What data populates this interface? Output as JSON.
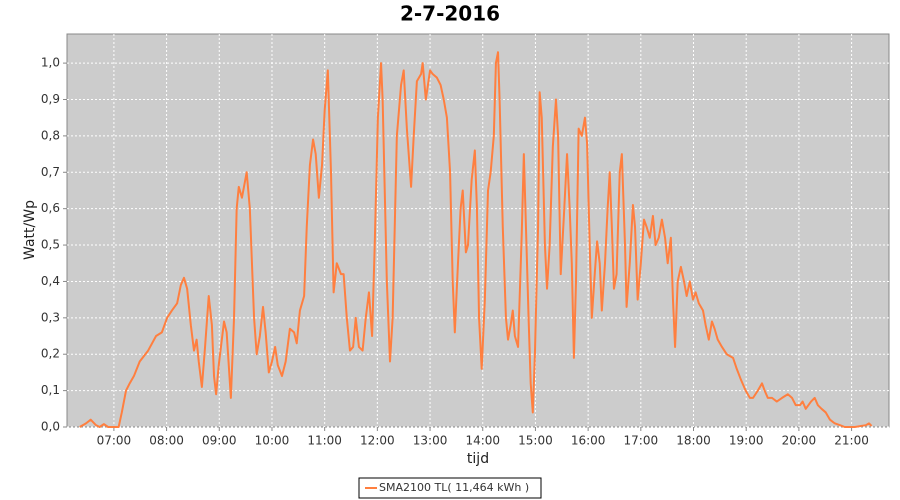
{
  "chart_data": {
    "type": "line",
    "title": "2-7-2016",
    "x_label": "tijd",
    "y_label": "Watt/Wp",
    "x": [
      6.35,
      6.47,
      6.56,
      6.66,
      6.73,
      6.81,
      6.89,
      7.09,
      7.15,
      7.23,
      7.3,
      7.38,
      7.49,
      7.65,
      7.8,
      7.91,
      8.01,
      8.1,
      8.2,
      8.27,
      8.33,
      8.39,
      8.46,
      8.52,
      8.57,
      8.61,
      8.67,
      8.73,
      8.8,
      8.86,
      8.9,
      8.94,
      8.99,
      9.09,
      9.14,
      9.22,
      9.28,
      9.33,
      9.37,
      9.43,
      9.52,
      9.58,
      9.66,
      9.71,
      9.77,
      9.83,
      9.88,
      9.94,
      10.0,
      10.06,
      10.11,
      10.19,
      10.26,
      10.34,
      10.42,
      10.47,
      10.53,
      10.61,
      10.66,
      10.72,
      10.78,
      10.83,
      10.89,
      10.95,
      11.0,
      11.06,
      11.12,
      11.17,
      11.23,
      11.31,
      11.36,
      11.42,
      11.48,
      11.54,
      11.59,
      11.65,
      11.72,
      11.78,
      11.84,
      11.9,
      11.95,
      12.01,
      12.07,
      12.1,
      12.18,
      12.24,
      12.29,
      12.37,
      12.45,
      12.5,
      12.56,
      12.64,
      12.69,
      12.75,
      12.83,
      12.86,
      12.92,
      13.0,
      13.05,
      13.13,
      13.2,
      13.26,
      13.32,
      13.38,
      13.43,
      13.47,
      13.53,
      13.58,
      13.62,
      13.68,
      13.72,
      13.79,
      13.85,
      13.89,
      13.93,
      13.98,
      14.04,
      14.1,
      14.15,
      14.21,
      14.25,
      14.29,
      14.32,
      14.38,
      14.44,
      14.48,
      14.53,
      14.57,
      14.61,
      14.67,
      14.74,
      14.78,
      14.82,
      14.87,
      14.91,
      14.95,
      14.99,
      15.05,
      15.08,
      15.12,
      15.18,
      15.22,
      15.27,
      15.33,
      15.39,
      15.43,
      15.48,
      15.54,
      15.6,
      15.65,
      15.69,
      15.73,
      15.77,
      15.82,
      15.88,
      15.94,
      15.98,
      16.03,
      16.07,
      16.13,
      16.17,
      16.22,
      16.26,
      16.32,
      16.37,
      16.41,
      16.45,
      16.49,
      16.54,
      16.6,
      16.64,
      16.7,
      16.73,
      16.79,
      16.85,
      16.89,
      16.94,
      17.0,
      17.06,
      17.11,
      17.17,
      17.23,
      17.28,
      17.34,
      17.4,
      17.46,
      17.51,
      17.57,
      17.61,
      17.65,
      17.7,
      17.76,
      17.82,
      17.87,
      17.93,
      17.99,
      18.04,
      18.1,
      18.18,
      18.23,
      18.29,
      18.35,
      18.4,
      18.46,
      18.54,
      18.63,
      18.75,
      18.82,
      18.9,
      18.99,
      19.07,
      19.13,
      19.22,
      19.3,
      19.35,
      19.41,
      19.49,
      19.58,
      19.68,
      19.79,
      19.87,
      19.94,
      20.02,
      20.07,
      20.13,
      20.23,
      20.3,
      20.36,
      20.43,
      20.51,
      20.59,
      20.68,
      20.78,
      20.87,
      21.06,
      21.27,
      21.33,
      21.38
    ],
    "series": [
      {
        "name": "SMA2100 TL( 11,464 kWh )",
        "color": "#ff7f3f",
        "values": [
          0.0,
          0.01,
          0.02,
          0.005,
          0.0,
          0.008,
          0.0,
          0.0,
          0.04,
          0.1,
          0.12,
          0.14,
          0.18,
          0.21,
          0.25,
          0.26,
          0.3,
          0.32,
          0.34,
          0.39,
          0.41,
          0.38,
          0.28,
          0.21,
          0.24,
          0.18,
          0.11,
          0.22,
          0.36,
          0.28,
          0.14,
          0.09,
          0.17,
          0.29,
          0.26,
          0.08,
          0.3,
          0.6,
          0.66,
          0.63,
          0.7,
          0.6,
          0.3,
          0.2,
          0.25,
          0.33,
          0.26,
          0.15,
          0.18,
          0.22,
          0.17,
          0.14,
          0.18,
          0.27,
          0.26,
          0.23,
          0.32,
          0.36,
          0.55,
          0.72,
          0.79,
          0.75,
          0.63,
          0.72,
          0.87,
          0.98,
          0.7,
          0.37,
          0.45,
          0.42,
          0.42,
          0.3,
          0.21,
          0.22,
          0.3,
          0.22,
          0.21,
          0.3,
          0.37,
          0.25,
          0.5,
          0.85,
          1.0,
          0.9,
          0.4,
          0.18,
          0.3,
          0.8,
          0.94,
          0.98,
          0.82,
          0.66,
          0.8,
          0.95,
          0.97,
          1.0,
          0.9,
          0.98,
          0.97,
          0.96,
          0.94,
          0.9,
          0.85,
          0.7,
          0.4,
          0.26,
          0.45,
          0.6,
          0.65,
          0.48,
          0.5,
          0.68,
          0.76,
          0.6,
          0.3,
          0.16,
          0.35,
          0.65,
          0.7,
          0.8,
          1.0,
          1.03,
          0.9,
          0.55,
          0.3,
          0.24,
          0.28,
          0.32,
          0.25,
          0.22,
          0.53,
          0.75,
          0.55,
          0.3,
          0.12,
          0.04,
          0.2,
          0.55,
          0.92,
          0.85,
          0.5,
          0.38,
          0.5,
          0.77,
          0.9,
          0.8,
          0.42,
          0.58,
          0.75,
          0.6,
          0.45,
          0.19,
          0.4,
          0.82,
          0.8,
          0.85,
          0.78,
          0.5,
          0.3,
          0.43,
          0.51,
          0.45,
          0.32,
          0.45,
          0.6,
          0.7,
          0.55,
          0.38,
          0.42,
          0.7,
          0.75,
          0.5,
          0.33,
          0.45,
          0.61,
          0.55,
          0.35,
          0.45,
          0.57,
          0.55,
          0.52,
          0.58,
          0.5,
          0.52,
          0.57,
          0.52,
          0.45,
          0.52,
          0.35,
          0.22,
          0.4,
          0.44,
          0.4,
          0.36,
          0.4,
          0.35,
          0.37,
          0.34,
          0.32,
          0.28,
          0.24,
          0.29,
          0.27,
          0.24,
          0.22,
          0.2,
          0.19,
          0.16,
          0.13,
          0.1,
          0.08,
          0.08,
          0.1,
          0.12,
          0.1,
          0.08,
          0.08,
          0.07,
          0.08,
          0.09,
          0.08,
          0.06,
          0.06,
          0.07,
          0.05,
          0.07,
          0.08,
          0.06,
          0.05,
          0.04,
          0.02,
          0.01,
          0.005,
          0.0,
          0.0,
          0.005,
          0.01,
          0.003
        ]
      }
    ],
    "xlim": [
      6.11,
      21.71
    ],
    "xticks": [
      {
        "value": 7,
        "label": "07:00"
      },
      {
        "value": 8,
        "label": "08:00"
      },
      {
        "value": 9,
        "label": "09:00"
      },
      {
        "value": 10,
        "label": "10:00"
      },
      {
        "value": 11,
        "label": "11:00"
      },
      {
        "value": 12,
        "label": "12:00"
      },
      {
        "value": 13,
        "label": "13:00"
      },
      {
        "value": 14,
        "label": "14:00"
      },
      {
        "value": 15,
        "label": "15:00"
      },
      {
        "value": 16,
        "label": "16:00"
      },
      {
        "value": 17,
        "label": "17:00"
      },
      {
        "value": 18,
        "label": "18:00"
      },
      {
        "value": 19,
        "label": "19:00"
      },
      {
        "value": 20,
        "label": "20:00"
      },
      {
        "value": 21,
        "label": "21:00"
      }
    ],
    "ylim": [
      0,
      1.08
    ],
    "yticks": [
      {
        "value": 0,
        "label": "0,0"
      },
      {
        "value": 0.1,
        "label": "0,1"
      },
      {
        "value": 0.2,
        "label": "0,2"
      },
      {
        "value": 0.3,
        "label": "0,3"
      },
      {
        "value": 0.4,
        "label": "0,4"
      },
      {
        "value": 0.5,
        "label": "0,5"
      },
      {
        "value": 0.6,
        "label": "0,6"
      },
      {
        "value": 0.7,
        "label": "0,7"
      },
      {
        "value": 0.8,
        "label": "0,8"
      },
      {
        "value": 0.9,
        "label": "0,9"
      },
      {
        "value": 1.0,
        "label": "1,0"
      }
    ],
    "grid": true,
    "legend": "bottom"
  }
}
